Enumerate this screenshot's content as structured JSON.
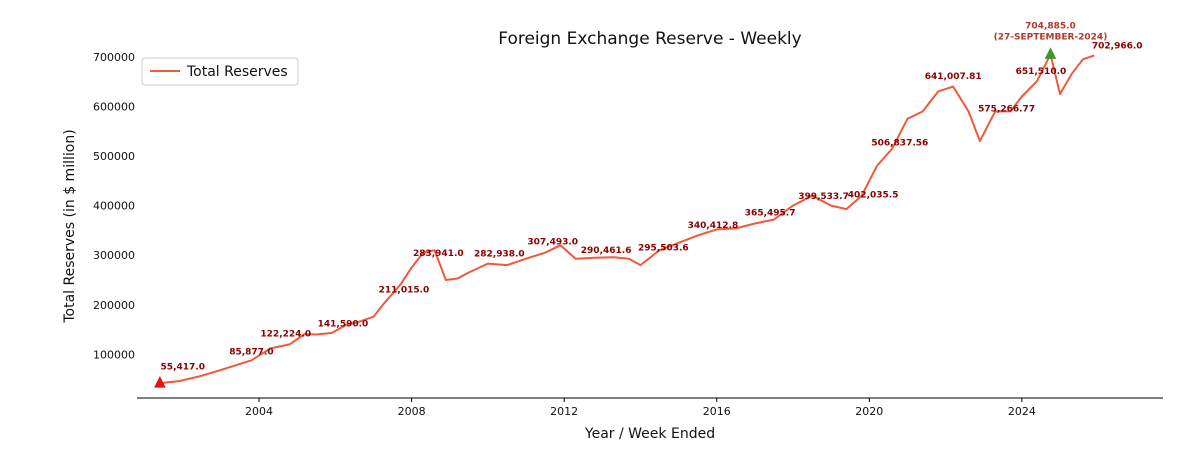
{
  "chart_data": {
    "type": "line",
    "title": "Foreign Exchange Reserve - Weekly",
    "xlabel": "Year / Week Ended",
    "ylabel": "Total Reserves (in $ million)",
    "xlim": [
      2000.8,
      2027.7
    ],
    "ylim": [
      12000,
      738000
    ],
    "x_ticks": [
      2004,
      2008,
      2012,
      2016,
      2020,
      2024
    ],
    "y_ticks": [
      100000,
      200000,
      300000,
      400000,
      500000,
      600000,
      700000
    ],
    "legend": {
      "position": "top-left",
      "entries": [
        "Total Reserves"
      ]
    },
    "line_color": "#f05a3a",
    "series": [
      {
        "name": "Total Reserves",
        "x": [
          2001.4,
          2001.9,
          2002.4,
          2002.9,
          2003.3,
          2003.8,
          2004.3,
          2004.8,
          2005.2,
          2005.5,
          2005.9,
          2006.3,
          2006.6,
          2007.0,
          2007.3,
          2007.7,
          2008.0,
          2008.3,
          2008.6,
          2008.9,
          2009.2,
          2009.5,
          2010.0,
          2010.5,
          2011.0,
          2011.5,
          2011.9,
          2012.3,
          2012.8,
          2013.3,
          2013.7,
          2014.0,
          2014.5,
          2015.0,
          2015.5,
          2016.0,
          2016.5,
          2017.0,
          2017.5,
          2018.0,
          2018.5,
          2019.0,
          2019.4,
          2019.8,
          2020.2,
          2020.6,
          2021.0,
          2021.4,
          2021.8,
          2022.2,
          2022.6,
          2022.9,
          2023.3,
          2023.7,
          2024.0,
          2024.4,
          2024.75,
          2025.0,
          2025.3,
          2025.6,
          2025.9
        ],
        "y": [
          42000,
          46000,
          55000,
          66000,
          76000,
          88000,
          112000,
          120000,
          141000,
          140000,
          143000,
          160000,
          165000,
          176000,
          205000,
          240000,
          275000,
          305000,
          310000,
          250000,
          253000,
          265000,
          283000,
          280000,
          293000,
          305000,
          320000,
          293000,
          295000,
          296000,
          293000,
          280000,
          310000,
          325000,
          340000,
          352000,
          354000,
          364000,
          372000,
          400000,
          420000,
          400000,
          393000,
          420000,
          480000,
          515000,
          575000,
          590000,
          630000,
          640000,
          590000,
          530000,
          590000,
          590000,
          620000,
          651000,
          704885,
          625000,
          665000,
          695000,
          702966
        ]
      }
    ],
    "annotations": [
      {
        "x": 2002.0,
        "y": 55417,
        "text": "55,417.0"
      },
      {
        "x": 2003.8,
        "y": 85877,
        "text": "85,877.0"
      },
      {
        "x": 2004.7,
        "y": 122224,
        "text": "122,224.0"
      },
      {
        "x": 2006.2,
        "y": 141590,
        "text": "141,590.0"
      },
      {
        "x": 2007.8,
        "y": 211015,
        "text": "211,015.0"
      },
      {
        "x": 2008.7,
        "y": 283941,
        "text": "283,941.0"
      },
      {
        "x": 2010.3,
        "y": 282938,
        "text": "282,938.0"
      },
      {
        "x": 2011.7,
        "y": 307493,
        "text": "307,493.0"
      },
      {
        "x": 2013.1,
        "y": 290461.6,
        "text": "290,461.6"
      },
      {
        "x": 2014.6,
        "y": 295503.6,
        "text": "295,503.6"
      },
      {
        "x": 2015.9,
        "y": 340412.8,
        "text": "340,412.8"
      },
      {
        "x": 2017.4,
        "y": 365495.7,
        "text": "365,495.7"
      },
      {
        "x": 2018.8,
        "y": 399533.7,
        "text": "399,533.7"
      },
      {
        "x": 2020.1,
        "y": 402035.5,
        "text": "402,035.5"
      },
      {
        "x": 2020.8,
        "y": 506837.56,
        "text": "506,837.56"
      },
      {
        "x": 2022.2,
        "y": 641007.81,
        "text": "641,007.81"
      },
      {
        "x": 2023.6,
        "y": 575266.77,
        "text": "575,266.77"
      },
      {
        "x": 2024.5,
        "y": 651510.0,
        "text": "651,510.0"
      },
      {
        "x": 2026.5,
        "y": 702966.0,
        "text": "702,966.0"
      }
    ],
    "peak": {
      "x": 2024.75,
      "y": 704885,
      "value_text": "704,885.0",
      "date_text": "(27-SEPTEMBER-2024)",
      "marker_color": "#3a9a28"
    },
    "start": {
      "x": 2001.4,
      "y": 42000,
      "marker_color": "#ee1111"
    }
  }
}
